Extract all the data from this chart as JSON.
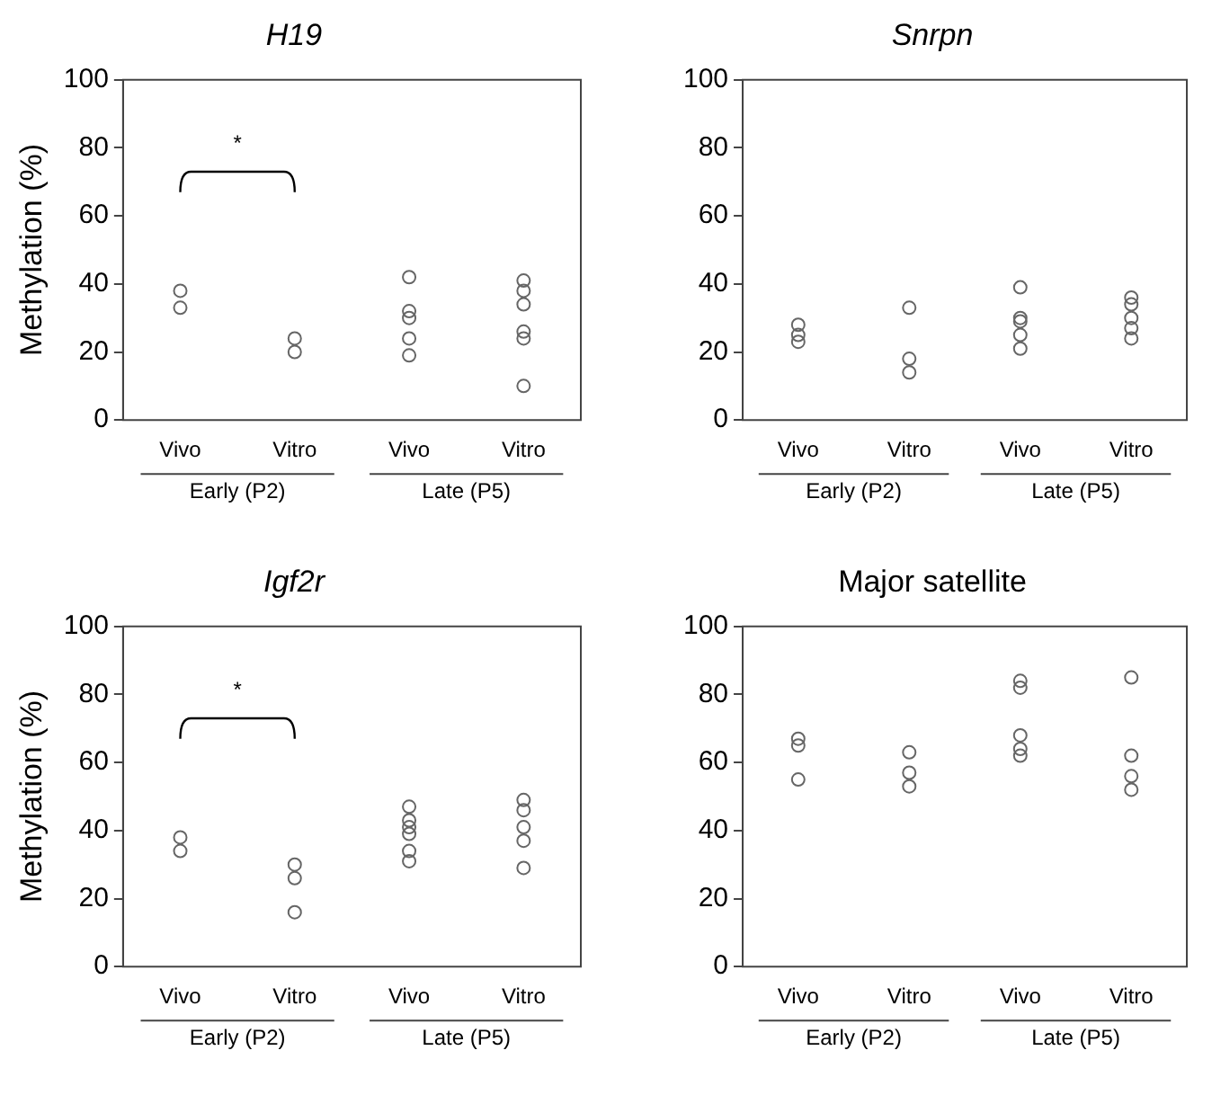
{
  "chart_data": [
    {
      "type": "scatter",
      "title": "H19",
      "ylabel": "Methylation (%)",
      "categories": [
        "Vivo",
        "Vitro",
        "Vivo",
        "Vitro"
      ],
      "ylim": [
        0,
        100
      ],
      "yticks": [
        0,
        20,
        40,
        60,
        80,
        100
      ],
      "marker": "circle",
      "grid": false,
      "legend": false,
      "annotations": [
        "*",
        "Early (P2)",
        "Late (P5)"
      ],
      "series": [
        {
          "color": "#666666",
          "values": [
            38,
            24,
            42,
            41
          ]
        },
        {
          "color": "#666666",
          "values": [
            33,
            20,
            32,
            38
          ]
        },
        {
          "color": "#666666",
          "values": [
            null,
            null,
            30,
            34
          ]
        },
        {
          "color": "#666666",
          "values": [
            null,
            null,
            24,
            26
          ]
        },
        {
          "color": "#666666",
          "values": [
            null,
            null,
            19,
            24
          ]
        },
        {
          "color": "#666666",
          "values": [
            null,
            null,
            null,
            10
          ]
        }
      ]
    },
    {
      "type": "scatter",
      "title": "Snrpn",
      "categories": [
        "Vivo",
        "Vitro",
        "Vivo",
        "Vitro"
      ],
      "ylim": [
        0,
        100
      ],
      "yticks": [
        0,
        20,
        40,
        60,
        80,
        100
      ],
      "marker": "circle",
      "grid": false,
      "legend": false,
      "annotations": [
        "Early (P2)",
        "Late (P5)"
      ],
      "series": [
        {
          "color": "#666666",
          "values": [
            28,
            33,
            39,
            36
          ]
        },
        {
          "color": "#666666",
          "values": [
            25,
            18,
            30,
            34
          ]
        },
        {
          "color": "#666666",
          "values": [
            23,
            14,
            29,
            30
          ]
        },
        {
          "color": "#666666",
          "values": [
            null,
            null,
            25,
            27
          ]
        },
        {
          "color": "#666666",
          "values": [
            null,
            null,
            21,
            24
          ]
        }
      ]
    },
    {
      "type": "scatter",
      "title": "Igf2r",
      "ylabel": "Methylation (%)",
      "categories": [
        "Vivo",
        "Vitro",
        "Vivo",
        "Vitro"
      ],
      "ylim": [
        0,
        100
      ],
      "yticks": [
        0,
        20,
        40,
        60,
        80,
        100
      ],
      "marker": "circle",
      "grid": false,
      "legend": false,
      "annotations": [
        "*",
        "Early (P2)",
        "Late (P5)"
      ],
      "series": [
        {
          "color": "#666666",
          "values": [
            38,
            30,
            47,
            49
          ]
        },
        {
          "color": "#666666",
          "values": [
            34,
            26,
            43,
            46
          ]
        },
        {
          "color": "#666666",
          "values": [
            null,
            16,
            41,
            41
          ]
        },
        {
          "color": "#666666",
          "values": [
            null,
            null,
            39,
            37
          ]
        },
        {
          "color": "#666666",
          "values": [
            null,
            null,
            34,
            29
          ]
        },
        {
          "color": "#666666",
          "values": [
            null,
            null,
            31,
            null
          ]
        }
      ]
    },
    {
      "type": "scatter",
      "title": "Major satellite",
      "categories": [
        "Vivo",
        "Vitro",
        "Vivo",
        "Vitro"
      ],
      "ylim": [
        0,
        100
      ],
      "yticks": [
        0,
        20,
        40,
        60,
        80,
        100
      ],
      "marker": "circle",
      "grid": false,
      "legend": false,
      "annotations": [
        "Early (P2)",
        "Late (P5)"
      ],
      "series": [
        {
          "color": "#666666",
          "values": [
            67,
            63,
            84,
            85
          ]
        },
        {
          "color": "#666666",
          "values": [
            65,
            57,
            82,
            62
          ]
        },
        {
          "color": "#666666",
          "values": [
            55,
            53,
            68,
            56
          ]
        },
        {
          "color": "#666666",
          "values": [
            null,
            null,
            64,
            52
          ]
        },
        {
          "color": "#666666",
          "values": [
            null,
            null,
            62,
            null
          ]
        }
      ]
    }
  ]
}
